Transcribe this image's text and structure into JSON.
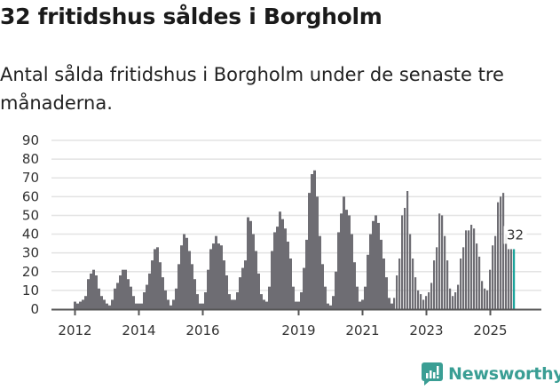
{
  "header": {
    "title": "32 fritidshus såldes i Borgholm",
    "subtitle": "Antal sålda fritidshus i Borgholm under de senaste tre månaderna."
  },
  "brand": {
    "name": "Newsworthy",
    "color": "#3a9e94"
  },
  "colors": {
    "bar": "#6e6d73",
    "highlight": "#1aa39a",
    "grid": "#e3e3e3",
    "axis": "#555555"
  },
  "chart_data": {
    "type": "bar",
    "title": "32 fritidshus såldes i Borgholm",
    "subtitle": "Antal sålda fritidshus i Borgholm under de senaste tre månaderna.",
    "xlabel": "",
    "ylabel": "",
    "ylim": [
      0,
      90
    ],
    "yticks": [
      0,
      10,
      20,
      30,
      40,
      50,
      60,
      70,
      80,
      90
    ],
    "xtick_labels": [
      "2012",
      "2014",
      "2016",
      "2019",
      "2021",
      "2023",
      "2025"
    ],
    "grid": true,
    "x_start": "2012-01",
    "x_end": "2025-10",
    "frequency": "monthly",
    "annotation": {
      "label": "32",
      "x": "2025-10",
      "value": 32
    },
    "values": [
      4,
      3,
      4,
      5,
      7,
      16,
      19,
      21,
      18,
      11,
      7,
      5,
      3,
      2,
      5,
      11,
      14,
      18,
      21,
      21,
      16,
      12,
      7,
      3,
      3,
      3,
      9,
      13,
      19,
      26,
      32,
      33,
      25,
      17,
      10,
      5,
      2,
      5,
      11,
      24,
      34,
      40,
      38,
      31,
      24,
      16,
      8,
      3,
      3,
      9,
      21,
      32,
      35,
      39,
      35,
      34,
      26,
      18,
      8,
      5,
      5,
      9,
      17,
      22,
      26,
      49,
      47,
      40,
      31,
      19,
      8,
      5,
      4,
      12,
      31,
      41,
      44,
      52,
      48,
      43,
      36,
      27,
      12,
      4,
      4,
      9,
      22,
      37,
      62,
      72,
      74,
      60,
      39,
      24,
      12,
      3,
      2,
      7,
      20,
      41,
      51,
      60,
      53,
      50,
      40,
      25,
      12,
      4,
      5,
      12,
      29,
      40,
      47,
      50,
      46,
      37,
      27,
      17,
      6,
      3,
      6,
      18,
      27,
      50,
      54,
      63,
      40,
      27,
      17,
      10,
      8,
      5,
      7,
      9,
      14,
      26,
      33,
      51,
      50,
      39,
      26,
      11,
      7,
      9,
      13,
      27,
      33,
      42,
      42,
      45,
      43,
      35,
      28,
      15,
      11,
      10,
      21,
      34,
      39,
      57,
      60,
      62,
      40,
      32,
      32,
      32
    ]
  }
}
